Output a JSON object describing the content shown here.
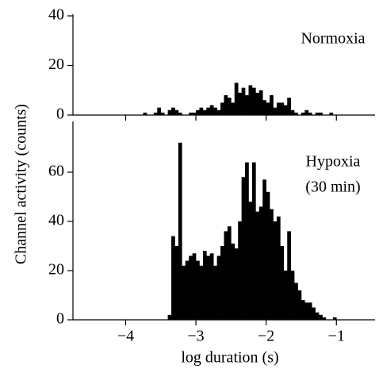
{
  "chart_data": [
    {
      "type": "histogram",
      "annotation": [
        "Normoxia"
      ],
      "ylabel": "Channel activity (counts)",
      "color": "#000000",
      "xlim": [
        -4.75,
        -0.45
      ],
      "ylim": [
        0,
        40
      ],
      "yticks": [
        0,
        20,
        40
      ],
      "bins": [
        -3.8,
        -3.75,
        -3.7,
        -3.65,
        -3.6,
        -3.55,
        -3.5,
        -3.45,
        -3.4,
        -3.35,
        -3.3,
        -3.25,
        -3.2,
        -3.15,
        -3.1,
        -3.05,
        -3.0,
        -2.95,
        -2.9,
        -2.85,
        -2.8,
        -2.75,
        -2.7,
        -2.65,
        -2.6,
        -2.55,
        -2.5,
        -2.45,
        -2.4,
        -2.35,
        -2.3,
        -2.25,
        -2.2,
        -2.15,
        -2.1,
        -2.05,
        -2.0,
        -1.95,
        -1.9,
        -1.85,
        -1.8,
        -1.75,
        -1.7,
        -1.65,
        -1.6,
        -1.55,
        -1.5,
        -1.45,
        -1.4,
        -1.35,
        -1.3,
        -1.25,
        -1.2,
        -1.15,
        -1.1,
        -1.05,
        -1.0,
        -0.95,
        -0.9,
        -0.85,
        -0.8
      ],
      "values": [
        0,
        1,
        0,
        0,
        1,
        3,
        1,
        0,
        2,
        3,
        2,
        1,
        0,
        0,
        1,
        1,
        2,
        3,
        2,
        3,
        4,
        3,
        2,
        5,
        8,
        7,
        5,
        13,
        9,
        11,
        8,
        12,
        11,
        9,
        10,
        6,
        5,
        8,
        3,
        5,
        5,
        4,
        7,
        2,
        1,
        0,
        1,
        2,
        1,
        0,
        1,
        1,
        0,
        0,
        1,
        0,
        0,
        0,
        0,
        0
      ]
    },
    {
      "type": "histogram",
      "annotation": [
        "Hypoxia",
        "(30 min)"
      ],
      "xlabel": "log duration (s)",
      "color": "#000000",
      "xlim": [
        -4.75,
        -0.45
      ],
      "ylim": [
        0,
        80
      ],
      "yticks": [
        0,
        20,
        40,
        60
      ],
      "xticks": [
        {
          "value": -4,
          "label": "−4"
        },
        {
          "value": -3,
          "label": "−3"
        },
        {
          "value": -2,
          "label": "−2"
        },
        {
          "value": -1,
          "label": "−1"
        }
      ],
      "bins": [
        -3.8,
        -3.75,
        -3.7,
        -3.65,
        -3.6,
        -3.55,
        -3.5,
        -3.45,
        -3.4,
        -3.35,
        -3.3,
        -3.25,
        -3.2,
        -3.15,
        -3.1,
        -3.05,
        -3.0,
        -2.95,
        -2.9,
        -2.85,
        -2.8,
        -2.75,
        -2.7,
        -2.65,
        -2.6,
        -2.55,
        -2.5,
        -2.45,
        -2.4,
        -2.35,
        -2.3,
        -2.25,
        -2.2,
        -2.15,
        -2.1,
        -2.05,
        -2.0,
        -1.95,
        -1.9,
        -1.85,
        -1.8,
        -1.75,
        -1.7,
        -1.65,
        -1.6,
        -1.55,
        -1.5,
        -1.45,
        -1.4,
        -1.35,
        -1.3,
        -1.25,
        -1.2,
        -1.15,
        -1.1,
        -1.05,
        -1.0,
        -0.95,
        -0.9,
        -0.85,
        -0.8
      ],
      "values": [
        0,
        0,
        0,
        0,
        0,
        0,
        0,
        0,
        2,
        34,
        30,
        72,
        22,
        24,
        26,
        27,
        24,
        22,
        28,
        26,
        27,
        22,
        26,
        30,
        36,
        38,
        31,
        29,
        40,
        58,
        64,
        48,
        64,
        44,
        46,
        57,
        52,
        45,
        40,
        42,
        30,
        20,
        36,
        20,
        15,
        12,
        8,
        7,
        7,
        5,
        3,
        2,
        1,
        0,
        0,
        1,
        0,
        0,
        0,
        0
      ]
    }
  ]
}
